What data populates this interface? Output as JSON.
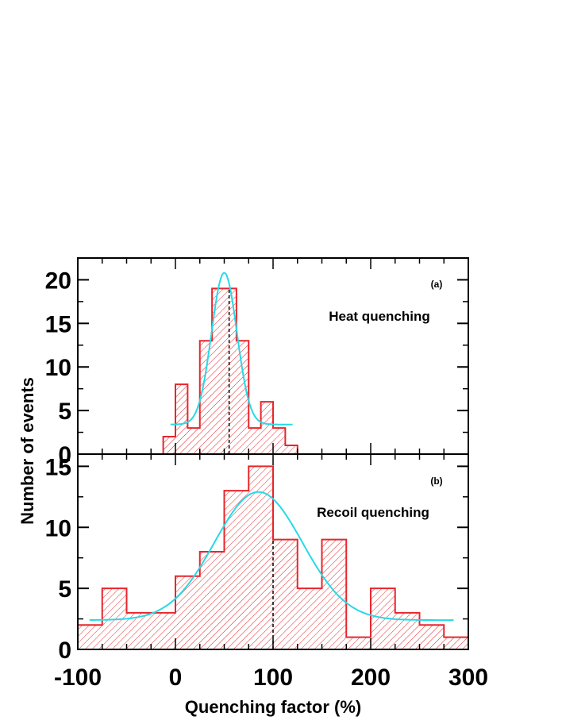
{
  "colors": {
    "histogram": "#e8262b",
    "fit": "#27d9e6",
    "axis": "#000000",
    "median": "#000000"
  },
  "chart_data": {
    "xlabel": "Quenching factor (%)",
    "ylabel": "Number of events",
    "xlim": [
      -100,
      300
    ],
    "x_ticks": [
      "-100",
      "0",
      "100",
      "200",
      "300"
    ],
    "panels": [
      {
        "type": "bar",
        "tag": "(a)",
        "label": "Heat quenching",
        "ylim": [
          0,
          22.5
        ],
        "y_ticks": [
          "0",
          "5",
          "10",
          "15",
          "20"
        ],
        "bin_width": 12.5,
        "bins": [
          {
            "x0": -12.5,
            "value": 2
          },
          {
            "x0": 0,
            "value": 8
          },
          {
            "x0": 12.5,
            "value": 3
          },
          {
            "x0": 25,
            "value": 13
          },
          {
            "x0": 37.5,
            "value": 19
          },
          {
            "x0": 50,
            "value": 19
          },
          {
            "x0": 62.5,
            "value": 13
          },
          {
            "x0": 75,
            "value": 3
          },
          {
            "x0": 87.5,
            "value": 6
          },
          {
            "x0": 100,
            "value": 3
          },
          {
            "x0": 112.5,
            "value": 1
          }
        ],
        "median_x": 55,
        "fit": {
          "mean": 50,
          "sigma": 13,
          "amplitude": 17.4,
          "offset": 3.4,
          "x_range": [
            -5,
            120
          ]
        }
      },
      {
        "type": "bar",
        "tag": "(b)",
        "label": "Recoil quenching",
        "ylim": [
          0,
          16
        ],
        "y_ticks": [
          "0",
          "5",
          "10",
          "15"
        ],
        "bin_width": 25,
        "bins": [
          {
            "x0": -100,
            "value": 2
          },
          {
            "x0": -75,
            "value": 5
          },
          {
            "x0": -50,
            "value": 3
          },
          {
            "x0": -25,
            "value": 3
          },
          {
            "x0": 0,
            "value": 6
          },
          {
            "x0": 25,
            "value": 8
          },
          {
            "x0": 50,
            "value": 13
          },
          {
            "x0": 75,
            "value": 15
          },
          {
            "x0": 100,
            "value": 9
          },
          {
            "x0": 125,
            "value": 5
          },
          {
            "x0": 150,
            "value": 9
          },
          {
            "x0": 175,
            "value": 1
          },
          {
            "x0": 200,
            "value": 5
          },
          {
            "x0": 225,
            "value": 3
          },
          {
            "x0": 250,
            "value": 2
          },
          {
            "x0": 275,
            "value": 1
          }
        ],
        "median_x": 100,
        "fit": {
          "mean": 85,
          "sigma": 45,
          "amplitude": 10.5,
          "offset": 2.4,
          "x_range": [
            -88,
            285
          ]
        }
      }
    ]
  }
}
